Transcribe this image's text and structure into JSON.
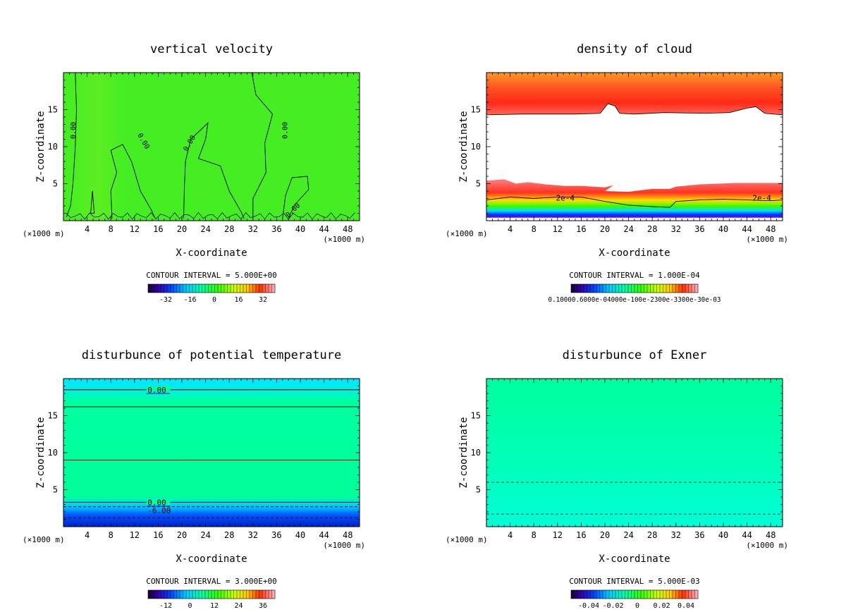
{
  "chart_data": [
    {
      "type": "heatmap",
      "title": "vertical velocity",
      "xlabel": "X-coordinate",
      "ylabel": "Z-coordinate",
      "xunit": "(×1000 m)",
      "xlim": [
        0,
        50
      ],
      "ylim": [
        0,
        20
      ],
      "xticks": [
        4,
        8,
        12,
        16,
        20,
        24,
        28,
        32,
        36,
        40,
        44,
        48
      ],
      "yticks": [
        5,
        10,
        15
      ],
      "contour_interval": "CONTOUR INTERVAL = 5.000E+00",
      "contour_labels": [
        "0.00",
        "0.00",
        "0.00",
        "0.00",
        "0.00"
      ],
      "colorbar_ticks": [
        "-32",
        "-16",
        "0",
        "16",
        "32"
      ],
      "dominant_value": 0
    },
    {
      "type": "heatmap",
      "title": "density of cloud",
      "xlabel": "X-coordinate",
      "ylabel": "Z-coordinate",
      "xunit": "(×1000 m)",
      "xlim": [
        0,
        50
      ],
      "ylim": [
        0,
        20
      ],
      "xticks": [
        4,
        8,
        12,
        16,
        20,
        24,
        28,
        32,
        36,
        40,
        44,
        48
      ],
      "yticks": [
        5,
        10,
        15
      ],
      "contour_interval": "CONTOUR INTERVAL = 1.000E-04",
      "contour_labels": [
        "2e-4",
        "2e-4"
      ],
      "colorbar_ticks": "0.10000.6000e-04000e-100e-2300e-3300e-30e-03",
      "cloud_layers": [
        {
          "name": "upper",
          "z_bottom_approx": 14,
          "z_top": 20
        },
        {
          "name": "lower",
          "z_bottom": 0.5,
          "z_top_approx": 5.5
        }
      ]
    },
    {
      "type": "heatmap",
      "title": "disturbunce of potential temperature",
      "xlabel": "X-coordinate",
      "ylabel": "Z-coordinate",
      "xunit": "(×1000 m)",
      "xlim": [
        0,
        50
      ],
      "ylim": [
        0,
        20
      ],
      "xticks": [
        4,
        8,
        12,
        16,
        20,
        24,
        28,
        32,
        36,
        40,
        44,
        48
      ],
      "yticks": [
        5,
        10,
        15
      ],
      "contour_interval": "CONTOUR INTERVAL = 3.000E+00",
      "contour_labels": [
        "0.00",
        "0.00",
        "-6.00"
      ],
      "colorbar_ticks": [
        "-12",
        "0",
        "12",
        "24",
        "36"
      ],
      "contour_levels_z": [
        18.5,
        16.2,
        9.0,
        3.3,
        2.7,
        1.2
      ]
    },
    {
      "type": "heatmap",
      "title": "disturbunce of Exner",
      "xlabel": "X-coordinate",
      "ylabel": "Z-coordinate",
      "xunit": "(×1000 m)",
      "xlim": [
        0,
        50
      ],
      "ylim": [
        0,
        20
      ],
      "xticks": [
        4,
        8,
        12,
        16,
        20,
        24,
        28,
        32,
        36,
        40,
        44,
        48
      ],
      "yticks": [
        5,
        10,
        15
      ],
      "contour_interval": "CONTOUR INTERVAL = 5.000E-03",
      "colorbar_ticks": [
        "-0.04",
        "-0.02",
        "0",
        "0.02",
        "0.04"
      ],
      "contour_levels_z": [
        6.0,
        1.7
      ]
    }
  ]
}
